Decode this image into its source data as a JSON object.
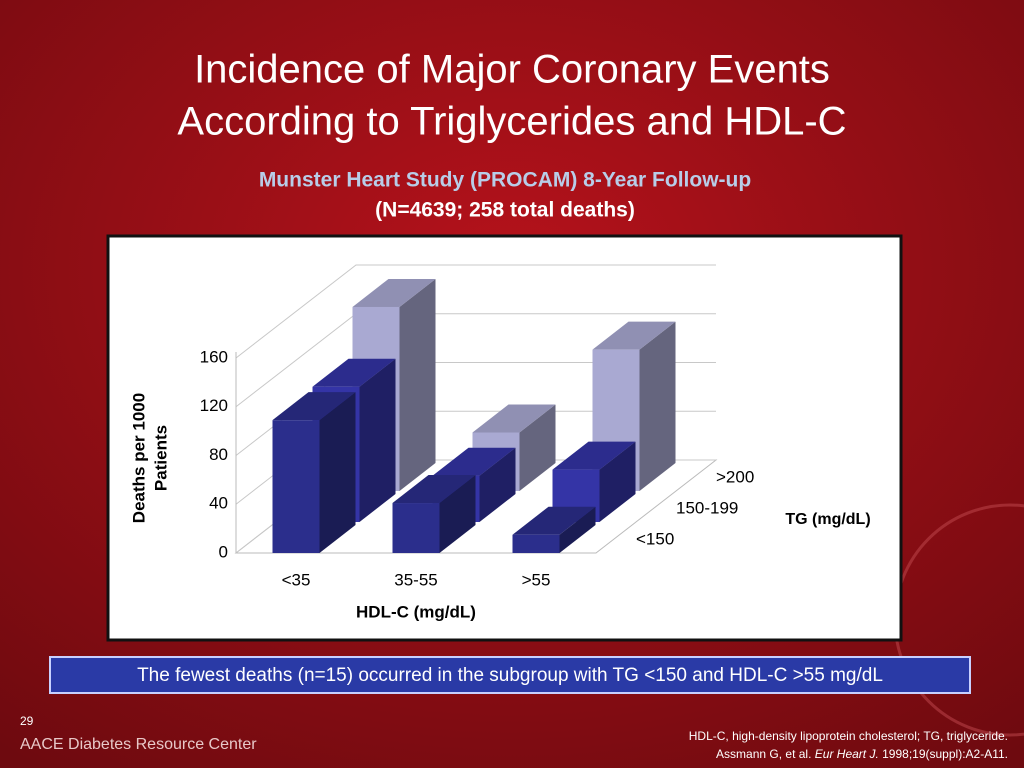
{
  "slide": {
    "title_lines": [
      "Incidence of Major Coronary Events",
      "According to Triglycerides and HDL-C"
    ],
    "subtitle_lines": [
      "Munster Heart Study (PROCAM) 8-Year Follow-up",
      "(N=4639; 258 total deaths)"
    ],
    "callout": "The fewest deaths (n=15) occurred in the subgroup with TG <150 and HDL-C >55 mg/dL",
    "page_number": "29",
    "brand": "AACE Diabetes Resource Center",
    "footnote": "HDL-C, high-density lipoprotein cholesterol; TG, triglyceride.",
    "reference": [
      "Assmann G, et al. ",
      "Eur Heart J.",
      " 1998;19(suppl):A2-A11."
    ]
  },
  "chart_data": {
    "type": "bar3d",
    "y_label_lines": [
      "Deaths per 1000",
      "Patients"
    ],
    "x_label": "HDL-C (mg/dL)",
    "z_label": "TG (mg/dL)",
    "categories": [
      "<35",
      "35-55",
      ">55"
    ],
    "series": [
      {
        "name": "<150",
        "color": "#2b2e8c",
        "values": [
          109,
          41,
          15
        ]
      },
      {
        "name": "150-199",
        "color": "#3434a6",
        "values": [
          111,
          38,
          43
        ]
      },
      {
        "name": ">200",
        "color": "#a9a9d2",
        "values": [
          151,
          48,
          116
        ]
      }
    ],
    "ylim": [
      0,
      160
    ],
    "yticks": [
      0,
      40,
      80,
      120,
      160
    ],
    "grid": true
  }
}
